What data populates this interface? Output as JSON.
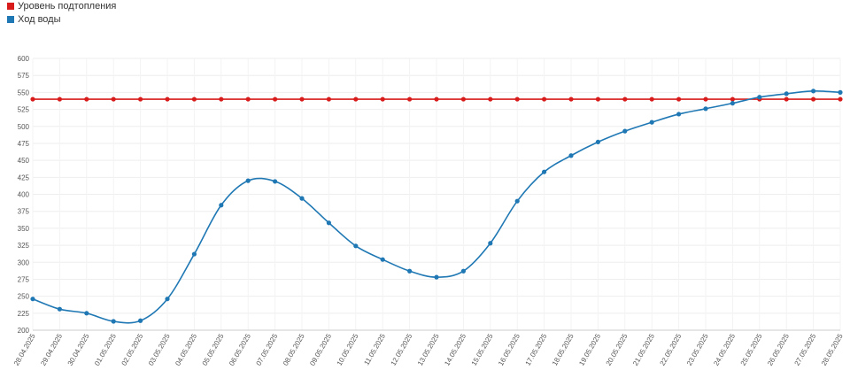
{
  "chart_data": {
    "type": "line",
    "categories": [
      "28.04.2025",
      "29.04.2025",
      "30.04.2025",
      "01.05.2025",
      "02.05.2025",
      "03.05.2025",
      "04.05.2025",
      "05.05.2025",
      "06.05.2025",
      "07.05.2025",
      "08.05.2025",
      "09.05.2025",
      "10.05.2025",
      "11.05.2025",
      "12.05.2025",
      "13.05.2025",
      "14.05.2025",
      "15.05.2025",
      "16.05.2025",
      "17.05.2025",
      "18.05.2025",
      "19.05.2025",
      "20.05.2025",
      "21.05.2025",
      "22.05.2025",
      "23.05.2025",
      "24.05.2025",
      "25.05.2025",
      "26.05.2025",
      "27.05.2025",
      "28.05.2025"
    ],
    "series": [
      {
        "name": "Уровень подтопления",
        "color": "#d81b1b",
        "values": [
          540,
          540,
          540,
          540,
          540,
          540,
          540,
          540,
          540,
          540,
          540,
          540,
          540,
          540,
          540,
          540,
          540,
          540,
          540,
          540,
          540,
          540,
          540,
          540,
          540,
          540,
          540,
          540,
          540,
          540,
          540
        ]
      },
      {
        "name": "Ход воды",
        "color": "#1f78b4",
        "values": [
          246,
          231,
          225,
          213,
          214,
          246,
          312,
          384,
          420,
          419,
          394,
          358,
          324,
          304,
          287,
          278,
          287,
          328,
          390,
          433,
          457,
          477,
          493,
          506,
          518,
          526,
          534,
          543,
          548,
          552,
          550
        ]
      }
    ],
    "ylim": [
      200,
      600
    ],
    "yticks": [
      200,
      225,
      250,
      275,
      300,
      325,
      350,
      375,
      400,
      425,
      450,
      475,
      500,
      525,
      550,
      575,
      600
    ],
    "grid": true
  }
}
